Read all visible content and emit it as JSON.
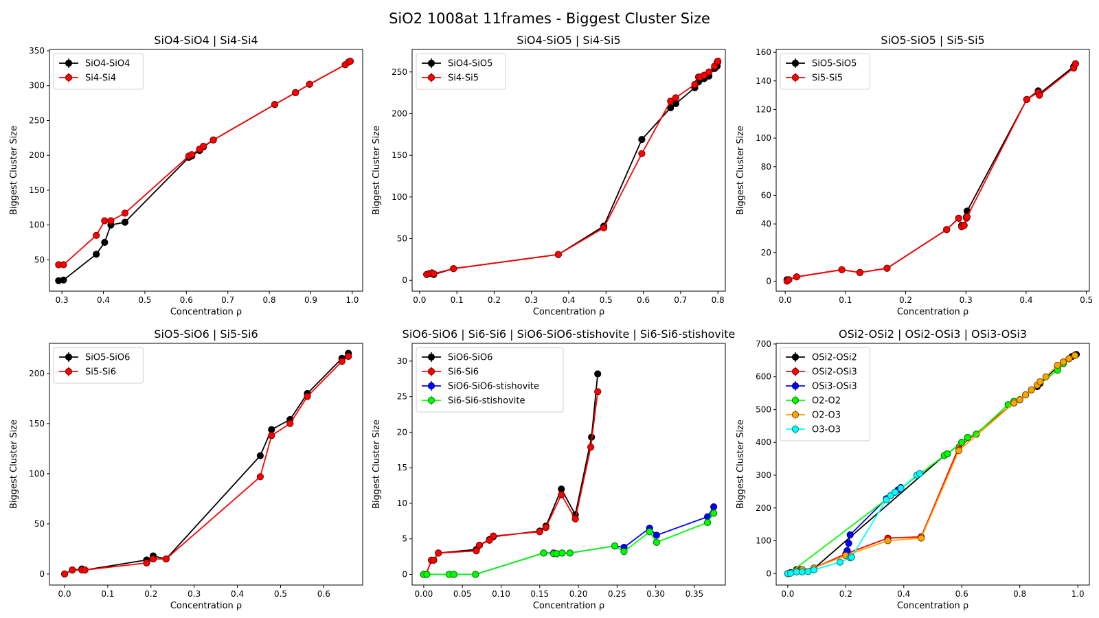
{
  "suptitle": "SiO2 1008at 11frames - Biggest Cluster Size",
  "colors": {
    "black": "#000000",
    "red": "#ff0000",
    "blue": "#0000ff",
    "green": "#00ff00",
    "orange": "#ffa500",
    "cyan": "#00ffff"
  },
  "chart_data": [
    {
      "type": "line",
      "title": "SiO4-SiO4 | Si4-Si4",
      "xlabel": "Concentration ρ",
      "ylabel": "Biggest Cluster Size",
      "xlim": [
        0.27,
        1.025
      ],
      "ylim": [
        5,
        352
      ],
      "xticks": [
        0.3,
        0.4,
        0.5,
        0.6,
        0.7,
        0.8,
        0.9,
        1.0
      ],
      "xtick_labels": [
        "0.3",
        "0.4",
        "0.5",
        "0.6",
        "0.7",
        "0.8",
        "0.9",
        "1.0"
      ],
      "yticks": [
        50,
        100,
        150,
        200,
        250,
        300,
        350
      ],
      "ytick_labels": [
        "50",
        "100",
        "150",
        "200",
        "250",
        "300",
        "350"
      ],
      "legend": "upper-left",
      "series": [
        {
          "name": "SiO4-SiO4",
          "color": "#000000",
          "x": [
            0.292,
            0.304,
            0.383,
            0.403,
            0.418,
            0.452,
            0.606,
            0.613,
            0.632,
            0.641,
            0.665,
            0.813,
            0.863,
            0.897,
            0.983,
            0.991,
            0.995
          ],
          "y": [
            20,
            21,
            58,
            75,
            100,
            104,
            197,
            199,
            207,
            212,
            222,
            273,
            290,
            302,
            330,
            334,
            335
          ]
        },
        {
          "name": "Si4-Si4",
          "color": "#ff0000",
          "x": [
            0.292,
            0.304,
            0.383,
            0.403,
            0.418,
            0.452,
            0.606,
            0.613,
            0.632,
            0.641,
            0.665,
            0.813,
            0.863,
            0.897,
            0.983,
            0.991,
            0.995
          ],
          "y": [
            43,
            43,
            85,
            106,
            106,
            117,
            199,
            201,
            209,
            213,
            222,
            273,
            290,
            302,
            330,
            334,
            335
          ]
        }
      ]
    },
    {
      "type": "line",
      "title": "SiO4-SiO5 | Si4-Si5",
      "xlabel": "Concentration ρ",
      "ylabel": "Biggest Cluster Size",
      "xlim": [
        -0.02,
        0.82
      ],
      "ylim": [
        -13,
        277
      ],
      "xticks": [
        0.0,
        0.1,
        0.2,
        0.3,
        0.4,
        0.5,
        0.6,
        0.7,
        0.8
      ],
      "xtick_labels": [
        "0.0",
        "0.1",
        "0.2",
        "0.3",
        "0.4",
        "0.5",
        "0.6",
        "0.7",
        "0.8"
      ],
      "yticks": [
        0,
        50,
        100,
        150,
        200,
        250
      ],
      "ytick_labels": [
        "0",
        "50",
        "100",
        "150",
        "200",
        "250"
      ],
      "legend": "upper-left",
      "series": [
        {
          "name": "SiO4-SiO5",
          "color": "#000000",
          "x": [
            0.019,
            0.026,
            0.033,
            0.038,
            0.091,
            0.372,
            0.494,
            0.596,
            0.673,
            0.687,
            0.738,
            0.748,
            0.753,
            0.763,
            0.776,
            0.791,
            0.798,
            0.8
          ],
          "y": [
            7,
            8,
            8,
            7,
            14,
            31,
            65,
            169,
            207,
            212,
            231,
            238,
            241,
            242,
            245,
            254,
            257,
            262
          ]
        },
        {
          "name": "Si4-Si5",
          "color": "#ff0000",
          "x": [
            0.019,
            0.026,
            0.033,
            0.038,
            0.091,
            0.372,
            0.494,
            0.596,
            0.673,
            0.687,
            0.738,
            0.748,
            0.753,
            0.763,
            0.776,
            0.791,
            0.798,
            0.8
          ],
          "y": [
            7,
            8,
            9,
            8,
            14,
            31,
            63,
            152,
            215,
            219,
            235,
            244,
            244,
            246,
            250,
            257,
            262,
            263
          ]
        }
      ]
    },
    {
      "type": "line",
      "title": "SiO5-SiO5 | Si5-Si5",
      "xlabel": "Concentration ρ",
      "ylabel": "Biggest Cluster Size",
      "xlim": [
        -0.015,
        0.505
      ],
      "ylim": [
        -7,
        162
      ],
      "xticks": [
        0.0,
        0.1,
        0.2,
        0.3,
        0.4,
        0.5
      ],
      "xtick_labels": [
        "0.0",
        "0.1",
        "0.2",
        "0.3",
        "0.4",
        "0.5"
      ],
      "yticks": [
        0,
        20,
        40,
        60,
        80,
        100,
        120,
        140,
        160
      ],
      "ytick_labels": [
        "0",
        "20",
        "40",
        "60",
        "80",
        "100",
        "120",
        "140",
        "160"
      ],
      "legend": "upper-left",
      "series": [
        {
          "name": "SiO5-SiO5",
          "color": "#000000",
          "x": [
            0.003,
            0.006,
            0.019,
            0.094,
            0.124,
            0.169,
            0.268,
            0.288,
            0.293,
            0.297,
            0.301,
            0.302,
            0.401,
            0.42,
            0.422,
            0.479,
            0.482
          ],
          "y": [
            1,
            1,
            3,
            8,
            6,
            9,
            36,
            44,
            39,
            39,
            45,
            49,
            127,
            133,
            131,
            150,
            152
          ]
        },
        {
          "name": "Si5-Si5",
          "color": "#ff0000",
          "x": [
            0.003,
            0.006,
            0.019,
            0.094,
            0.124,
            0.169,
            0.268,
            0.288,
            0.293,
            0.297,
            0.301,
            0.302,
            0.401,
            0.42,
            0.422,
            0.479,
            0.482
          ],
          "y": [
            0,
            1,
            3,
            8,
            6,
            9,
            36,
            44,
            38,
            39,
            44,
            45,
            127,
            132,
            130,
            149,
            152
          ]
        }
      ]
    },
    {
      "type": "line",
      "title": "SiO5-SiO6 | Si5-Si6",
      "xlabel": "Concentration ρ",
      "ylabel": "Biggest Cluster Size",
      "xlim": [
        -0.035,
        0.69
      ],
      "ylim": [
        -11,
        230
      ],
      "xticks": [
        0.0,
        0.1,
        0.2,
        0.3,
        0.4,
        0.5,
        0.6
      ],
      "xtick_labels": [
        "0.0",
        "0.1",
        "0.2",
        "0.3",
        "0.4",
        "0.5",
        "0.6"
      ],
      "yticks": [
        0,
        50,
        100,
        150,
        200
      ],
      "ytick_labels": [
        "0",
        "50",
        "100",
        "150",
        "200"
      ],
      "legend": "upper-left",
      "series": [
        {
          "name": "SiO5-SiO6",
          "color": "#000000",
          "x": [
            0.0,
            0.018,
            0.04,
            0.047,
            0.19,
            0.205,
            0.235,
            0.453,
            0.479,
            0.522,
            0.562,
            0.642,
            0.657
          ],
          "y": [
            0,
            4,
            5,
            4,
            14,
            18,
            15,
            118,
            144,
            154,
            180,
            215,
            220
          ]
        },
        {
          "name": "Si5-Si6",
          "color": "#ff0000",
          "x": [
            0.0,
            0.018,
            0.04,
            0.047,
            0.19,
            0.205,
            0.235,
            0.453,
            0.479,
            0.522,
            0.562,
            0.642,
            0.657
          ],
          "y": [
            0,
            4,
            4,
            4,
            11,
            15,
            15,
            97,
            138,
            150,
            177,
            212,
            217
          ]
        }
      ]
    },
    {
      "type": "line",
      "title": "SiO6-SiO6 | Si6-Si6 | SiO6-SiO6-stishovite | Si6-Si6-stishovite",
      "xlabel": "Concentration ρ",
      "ylabel": "Biggest Cluster Size",
      "xlim": [
        -0.015,
        0.39
      ],
      "ylim": [
        -1.5,
        32.5
      ],
      "xticks": [
        0.0,
        0.05,
        0.1,
        0.15,
        0.2,
        0.25,
        0.3,
        0.35
      ],
      "xtick_labels": [
        "0.00",
        "0.05",
        "0.10",
        "0.15",
        "0.20",
        "0.25",
        "0.30",
        "0.35"
      ],
      "yticks": [
        0,
        5,
        10,
        15,
        20,
        25,
        30
      ],
      "ytick_labels": [
        "0",
        "5",
        "10",
        "15",
        "20",
        "25",
        "30"
      ],
      "legend": "upper-left",
      "series": [
        {
          "name": "SiO6-SiO6",
          "color": "#000000",
          "x": [
            0.0,
            0.003,
            0.01,
            0.013,
            0.019,
            0.068,
            0.072,
            0.085,
            0.09,
            0.15,
            0.158,
            0.178,
            0.196,
            0.217,
            0.225
          ],
          "y": [
            0,
            0,
            2,
            2,
            3,
            3.5,
            4.1,
            4.9,
            5.3,
            6.1,
            6.8,
            12,
            8.4,
            19.3,
            28.2
          ]
        },
        {
          "name": "Si6-Si6",
          "color": "#ff0000",
          "x": [
            0.0,
            0.003,
            0.01,
            0.013,
            0.019,
            0.068,
            0.072,
            0.085,
            0.09,
            0.15,
            0.158,
            0.178,
            0.196,
            0.216,
            0.225
          ],
          "y": [
            0,
            0,
            2,
            2,
            3,
            3.3,
            4.1,
            4.8,
            5.4,
            6,
            6.6,
            11.2,
            7.8,
            17.9,
            25.7
          ]
        },
        {
          "name": "SiO6-SiO6-stishovite",
          "color": "#0000ff",
          "x": [
            0.0,
            0.004,
            0.033,
            0.039,
            0.067,
            0.155,
            0.168,
            0.172,
            0.179,
            0.189,
            0.247,
            0.259,
            0.292,
            0.301,
            0.367,
            0.375
          ],
          "y": [
            0,
            0,
            0,
            0,
            0,
            3,
            3,
            2.9,
            3,
            3,
            4,
            3.8,
            6.5,
            5.5,
            8.1,
            9.5
          ]
        },
        {
          "name": "Si6-Si6-stishovite",
          "color": "#00ff00",
          "x": [
            0.0,
            0.004,
            0.033,
            0.039,
            0.067,
            0.155,
            0.168,
            0.172,
            0.179,
            0.189,
            0.247,
            0.259,
            0.292,
            0.301,
            0.367,
            0.375
          ],
          "y": [
            0,
            0,
            0,
            0,
            0,
            3,
            2.9,
            2.9,
            3,
            3,
            4,
            3.2,
            6,
            4.5,
            7.3,
            8.6
          ]
        }
      ]
    },
    {
      "type": "line",
      "title": "OSi2-OSi2 | OSi2-OSi3 | OSi3-OSi3",
      "xlabel": "Concentration ρ",
      "ylabel": "Biggest Cluster Size",
      "xlim": [
        -0.04,
        1.04
      ],
      "ylim": [
        -35,
        702
      ],
      "xticks": [
        0.0,
        0.2,
        0.4,
        0.6,
        0.8,
        1.0
      ],
      "xtick_labels": [
        "0.0",
        "0.2",
        "0.4",
        "0.6",
        "0.8",
        "1.0"
      ],
      "yticks": [
        0,
        100,
        200,
        300,
        400,
        500,
        600,
        700
      ],
      "ytick_labels": [
        "0",
        "100",
        "200",
        "300",
        "400",
        "500",
        "600",
        "700"
      ],
      "legend": "upper-left",
      "series": [
        {
          "name": "OSi2-OSi2",
          "color": "#000000",
          "x": [
            0.0,
            0.005,
            0.01,
            0.03,
            0.04,
            0.05,
            0.09,
            0.54,
            0.55,
            0.6,
            0.62,
            0.65,
            0.76,
            0.78,
            0.8,
            0.82,
            0.84,
            0.86,
            0.87,
            0.93,
            0.95,
            0.97,
            0.98,
            0.99,
            0.995
          ],
          "y": [
            0,
            1,
            3,
            12,
            13,
            12,
            15,
            360,
            365,
            400,
            415,
            425,
            515,
            525,
            530,
            545,
            560,
            570,
            580,
            630,
            645,
            655,
            662,
            666,
            668
          ]
        },
        {
          "name": "OSi2-OSi3",
          "color": "#ff0000",
          "x": [
            0.0,
            0.005,
            0.01,
            0.03,
            0.04,
            0.05,
            0.09,
            0.2,
            0.345,
            0.46,
            0.59,
            0.78
          ],
          "y": [
            0,
            1,
            3,
            10,
            12,
            12,
            17,
            60,
            108,
            112,
            385,
            520
          ]
        },
        {
          "name": "OSi3-OSi3",
          "color": "#0000ff",
          "x": [
            0.2,
            0.205,
            0.21,
            0.215,
            0.34,
            0.355,
            0.37,
            0.38,
            0.39
          ],
          "y": [
            55,
            70,
            92,
            118,
            228,
            238,
            248,
            255,
            262
          ]
        },
        {
          "name": "O2-O2",
          "color": "#00ff00",
          "x": [
            0.0,
            0.005,
            0.54,
            0.55,
            0.6,
            0.62,
            0.65,
            0.76,
            0.78,
            0.8,
            0.93,
            0.95,
            0.99
          ],
          "y": [
            0,
            1,
            360,
            365,
            400,
            415,
            425,
            515,
            525,
            530,
            620,
            640,
            665
          ]
        },
        {
          "name": "O2-O3",
          "color": "#ffa500",
          "x": [
            0.0,
            0.05,
            0.09,
            0.2,
            0.345,
            0.46,
            0.59,
            0.78,
            0.8,
            0.82,
            0.84,
            0.86,
            0.87,
            0.89,
            0.93,
            0.95,
            0.97,
            0.99
          ],
          "y": [
            0,
            12,
            17,
            55,
            100,
            108,
            375,
            520,
            530,
            545,
            560,
            575,
            585,
            600,
            635,
            645,
            655,
            665
          ]
        },
        {
          "name": "O3-O3",
          "color": "#00ffff",
          "x": [
            0.0,
            0.01,
            0.03,
            0.05,
            0.07,
            0.09,
            0.18,
            0.215,
            0.22,
            0.34,
            0.355,
            0.37,
            0.39,
            0.445,
            0.455
          ],
          "y": [
            0,
            1,
            5,
            5,
            6,
            11,
            35,
            48,
            50,
            225,
            238,
            248,
            260,
            300,
            305
          ]
        }
      ]
    }
  ]
}
